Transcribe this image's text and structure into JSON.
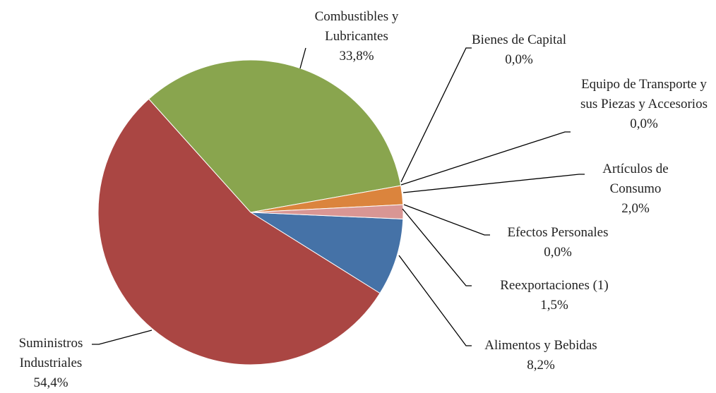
{
  "chart_data": {
    "type": "pie",
    "categories": [
      "Alimentos y Bebidas",
      "Suministros Industriales",
      "Combustibles y Lubricantes",
      "Bienes de Capital",
      "Equipo de Transporte y sus Piezas y Accesorios",
      "Artículos de Consumo",
      "Efectos Personales",
      "Reexportaciones (1)"
    ],
    "values": [
      8.2,
      54.4,
      33.8,
      0.0,
      0.0,
      2.0,
      0.0,
      1.5
    ],
    "value_labels": [
      "8,2%",
      "54,4%",
      "33,8%",
      "0,0%",
      "0,0%",
      "2,0%",
      "0,0%",
      "1,5%"
    ],
    "colors": [
      "#4572a7",
      "#aa4643",
      "#89a54e",
      "#4198af",
      "#71588f",
      "#db843d",
      "#93a9cf",
      "#d99694"
    ]
  }
}
